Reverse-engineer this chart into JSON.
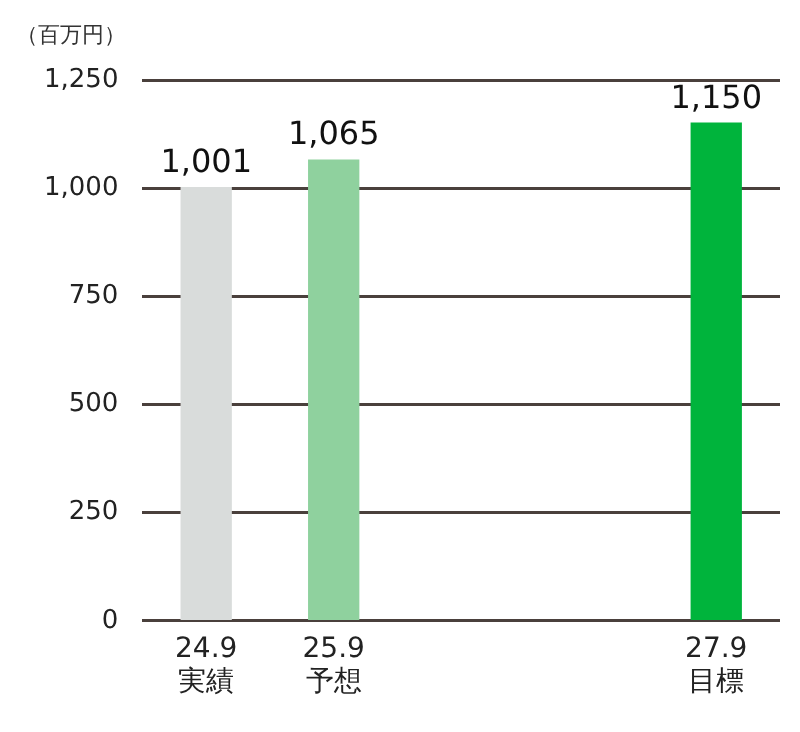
{
  "chart_data": {
    "type": "bar",
    "ylabel": "（百万円）",
    "categories": [
      "24.9\n実績",
      "25.9\n予想",
      null,
      null,
      "27.9\n目標"
    ],
    "values": [
      1001,
      1065,
      null,
      null,
      1150
    ],
    "colors": [
      "#d9dcdb",
      "#8fd19e",
      "#cccccc",
      "#cccccc",
      "#00b43c"
    ],
    "value_labels": [
      "1,001",
      "1,065",
      null,
      null,
      "1,150"
    ],
    "ylim": [
      0,
      1250
    ],
    "yticks": [
      0,
      {
        "value": 250,
        "label": "250"
      },
      {
        "value": 500,
        "label": "500"
      },
      {
        "value": 750,
        "label": "750"
      },
      {
        "value": 1000,
        "label": "1,000"
      },
      {
        "value": 1250,
        "label": "1,250"
      }
    ],
    "grid": "y"
  }
}
